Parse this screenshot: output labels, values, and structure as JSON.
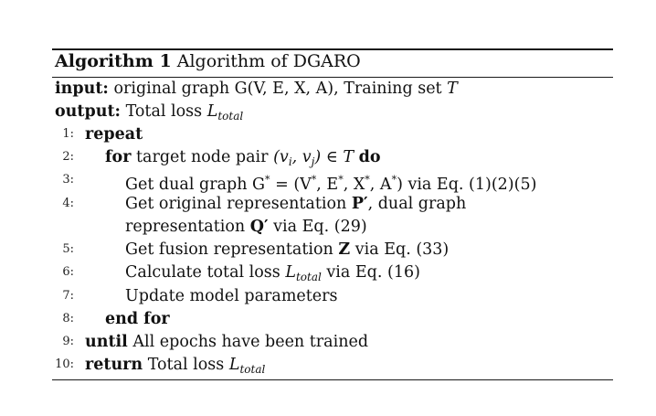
{
  "algorithm": {
    "label": "Algorithm 1",
    "title": "Algorithm of DGARO"
  },
  "io": {
    "input_kw": "input:",
    "input_text": "original graph G(V, E, X, A), Training set",
    "input_set": "T",
    "output_kw": "output:",
    "output_text": "Total loss",
    "loss_symbol": "L",
    "loss_sub": "total"
  },
  "steps": [
    {
      "n": "1:",
      "kw": "repeat"
    },
    {
      "n": "2:",
      "kw": "for",
      "text": "target node pair",
      "pair": "(v",
      "i": "i",
      "j": "j",
      "in": "∈ T",
      "kw2": "do"
    },
    {
      "n": "3:",
      "text_a": "Get dual graph G",
      "star": "*",
      "text_b": "= (V",
      "text_c": ", E",
      "text_d": ", X",
      "text_e": ", A",
      "text_f": ") via Eq. (1)(2)(5)"
    },
    {
      "n": "4:",
      "text_a": "Get original representation",
      "sym_p": "P′",
      "text_b": ", dual graph"
    },
    {
      "n": "",
      "text_a": "representation",
      "sym_q": "Q′",
      "text_b": "via Eq. (29)"
    },
    {
      "n": "5:",
      "text_a": "Get fusion representation",
      "sym_z": "Z",
      "text_b": "via Eq. (33)"
    },
    {
      "n": "6:",
      "text_a": "Calculate total loss",
      "text_b": "via Eq. (16)"
    },
    {
      "n": "7:",
      "text_a": "Update model parameters"
    },
    {
      "n": "8:",
      "kw": "end for"
    },
    {
      "n": "9:",
      "kw": "until",
      "text": "All epochs have been trained"
    },
    {
      "n": "10:",
      "kw": "return",
      "text": "Total loss"
    }
  ]
}
